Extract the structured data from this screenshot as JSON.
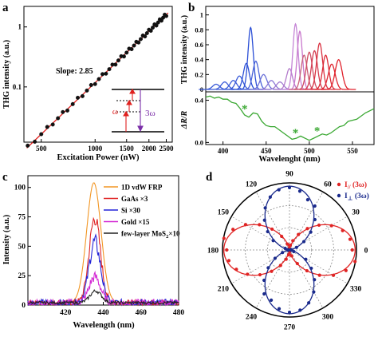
{
  "panels": {
    "a": {
      "letter": "a"
    },
    "b": {
      "letter": "b"
    },
    "c": {
      "letter": "c"
    },
    "d": {
      "letter": "d"
    }
  },
  "chart_data": [
    {
      "id": "a",
      "type": "scatter",
      "xscale": "log",
      "yscale": "log",
      "xlabel": "Excitation Power (nW)",
      "ylabel": "THG intensity (a.u.)",
      "xlim": [
        400,
        2700
      ],
      "ylim": [
        0.012,
        2.2
      ],
      "x_ticks": [
        500,
        1000,
        1500,
        2000,
        2500
      ],
      "y_ticks": [
        {
          "v": 1,
          "label": "1"
        },
        {
          "v": 0.1,
          "label": "0.1"
        }
      ],
      "annotation": "Slope: 2.85",
      "slope": 2.85,
      "fit_anchor": {
        "x": 2500,
        "y": 1.6
      },
      "points_x": [
        420,
        460,
        500,
        540,
        580,
        620,
        660,
        700,
        750,
        800,
        850,
        900,
        950,
        1000,
        1050,
        1100,
        1150,
        1200,
        1250,
        1300,
        1350,
        1400,
        1450,
        1500,
        1550,
        1600,
        1650,
        1700,
        1750,
        1800,
        1850,
        1900,
        1950,
        2000,
        2050,
        2100,
        2150,
        2200,
        2250,
        2300,
        2350,
        2400,
        2450,
        2500
      ],
      "inset": {
        "omega": "ω",
        "three_omega": "3ω"
      },
      "colors": {
        "points": "#111111",
        "fit": "#e0201e",
        "arrow_up": "#e0201e",
        "arrow_down": "#7b2fa8"
      }
    },
    {
      "id": "b_top",
      "type": "line",
      "xlim": [
        380,
        575
      ],
      "ylim": [
        0,
        1.05
      ],
      "ylabel": "THG intensity (a.u.)",
      "y_ticks": [
        0,
        0.2,
        0.4,
        0.6,
        0.8,
        1.0
      ],
      "y_tick_labels": [
        "0",
        "0.2",
        "0.4",
        "0.6",
        "0.8",
        "1"
      ],
      "peaks": [
        {
          "c": 392,
          "a": 0.07,
          "w": 4,
          "color": "#3a5bd8"
        },
        {
          "c": 402,
          "a": 0.1,
          "w": 4,
          "color": "#3a5bd8"
        },
        {
          "c": 412,
          "a": 0.12,
          "w": 4,
          "color": "#3a5bd8"
        },
        {
          "c": 419,
          "a": 0.18,
          "w": 4,
          "color": "#3a5bd8"
        },
        {
          "c": 427,
          "a": 0.35,
          "w": 3.5,
          "color": "#2b4fd6"
        },
        {
          "c": 432,
          "a": 0.83,
          "w": 3,
          "color": "#2b4fd6"
        },
        {
          "c": 438,
          "a": 0.38,
          "w": 3.5,
          "color": "#4a63d8"
        },
        {
          "c": 447,
          "a": 0.2,
          "w": 4,
          "color": "#6a70d8"
        },
        {
          "c": 456,
          "a": 0.12,
          "w": 4,
          "color": "#8a78d4"
        },
        {
          "c": 466,
          "a": 0.1,
          "w": 4,
          "color": "#a07ad0"
        },
        {
          "c": 477,
          "a": 0.28,
          "w": 3.5,
          "color": "#b47ccc"
        },
        {
          "c": 484,
          "a": 0.88,
          "w": 3,
          "color": "#c585d6"
        },
        {
          "c": 489,
          "a": 0.78,
          "w": 3,
          "color": "#c877cc"
        },
        {
          "c": 494,
          "a": 0.46,
          "w": 3.5,
          "color": "#c9607a"
        },
        {
          "c": 500,
          "a": 0.5,
          "w": 3.5,
          "color": "#d04c62"
        },
        {
          "c": 506,
          "a": 0.52,
          "w": 3.5,
          "color": "#d43c50"
        },
        {
          "c": 512,
          "a": 0.62,
          "w": 3.5,
          "color": "#d9303f"
        },
        {
          "c": 519,
          "a": 0.46,
          "w": 3.5,
          "color": "#dc2a36"
        },
        {
          "c": 526,
          "a": 0.34,
          "w": 4,
          "color": "#df2530"
        },
        {
          "c": 534,
          "a": 0.4,
          "w": 4,
          "color": "#e0222c"
        }
      ]
    },
    {
      "id": "b_bottom",
      "type": "line",
      "xlabel": "Wavelenght (nm)",
      "ylabel": "ΔR/R",
      "xlim": [
        380,
        575
      ],
      "ylim": [
        -0.02,
        0.48
      ],
      "x_ticks": [
        400,
        450,
        500,
        550
      ],
      "y_ticks": [
        0.0,
        0.4
      ],
      "y_tick_labels": [
        "0.0",
        "0.4"
      ],
      "x": [
        380,
        385,
        390,
        395,
        400,
        405,
        410,
        415,
        420,
        425,
        430,
        435,
        440,
        445,
        450,
        455,
        460,
        465,
        470,
        475,
        480,
        485,
        490,
        495,
        500,
        505,
        510,
        515,
        520,
        525,
        530,
        535,
        540,
        545,
        550,
        555,
        560,
        565,
        570,
        575
      ],
      "y": [
        0.43,
        0.44,
        0.42,
        0.43,
        0.41,
        0.41,
        0.38,
        0.37,
        0.32,
        0.26,
        0.24,
        0.28,
        0.27,
        0.2,
        0.16,
        0.15,
        0.15,
        0.12,
        0.09,
        0.06,
        0.03,
        0.04,
        0.06,
        0.04,
        0.02,
        0.04,
        0.06,
        0.08,
        0.07,
        0.09,
        0.12,
        0.15,
        0.16,
        0.2,
        0.21,
        0.22,
        0.25,
        0.28,
        0.3,
        0.32
      ],
      "stars": [
        {
          "x": 425,
          "y": 0.33
        },
        {
          "x": 484,
          "y": 0.1
        },
        {
          "x": 509,
          "y": 0.12
        }
      ],
      "color": "#3aa832"
    },
    {
      "id": "c",
      "type": "line",
      "xlabel": "Wavelength (nm)",
      "ylabel": "Intensity (a.u.)",
      "xlim": [
        400,
        480
      ],
      "ylim": [
        0,
        110
      ],
      "x_ticks": [
        420,
        440,
        460,
        480
      ],
      "y_ticks": [
        0,
        25,
        50,
        75,
        100
      ],
      "series": [
        {
          "name": "1D vdW FRP",
          "center": 435,
          "amp": 102,
          "width": 3.8,
          "noise": 0,
          "color": "#f29624"
        },
        {
          "name": "GaAs ×3",
          "center": 435.5,
          "amp": 72,
          "width": 3,
          "noise": 2.5,
          "color": "#e02424"
        },
        {
          "name": "Si ×30",
          "center": 435.5,
          "amp": 52,
          "width": 3,
          "noise": 3,
          "color": "#2424d8"
        },
        {
          "name": "Gold ×15",
          "center": 435.5,
          "amp": 22,
          "width": 3,
          "noise": 3,
          "color": "#d42ad4"
        },
        {
          "name": "few-layer MoS",
          "name_sub": "2",
          "name_tail": "×10",
          "center": 436,
          "amp": 10,
          "width": 3,
          "noise": 1.2,
          "color": "#222222"
        }
      ]
    },
    {
      "id": "d",
      "type": "polar",
      "angle_labels": [
        "0",
        "30",
        "60",
        "90",
        "120",
        "150",
        "180",
        "210",
        "240",
        "270",
        "300",
        "330"
      ],
      "series": [
        {
          "name": "I",
          "sub": "//",
          "suffix": "(3ω)",
          "color": "#e02424",
          "axis_deg": 0
        },
        {
          "name": "I",
          "sub": "⊥",
          "suffix": "(3ω)",
          "color": "#1a2a8c",
          "axis_deg": 90
        }
      ]
    }
  ]
}
